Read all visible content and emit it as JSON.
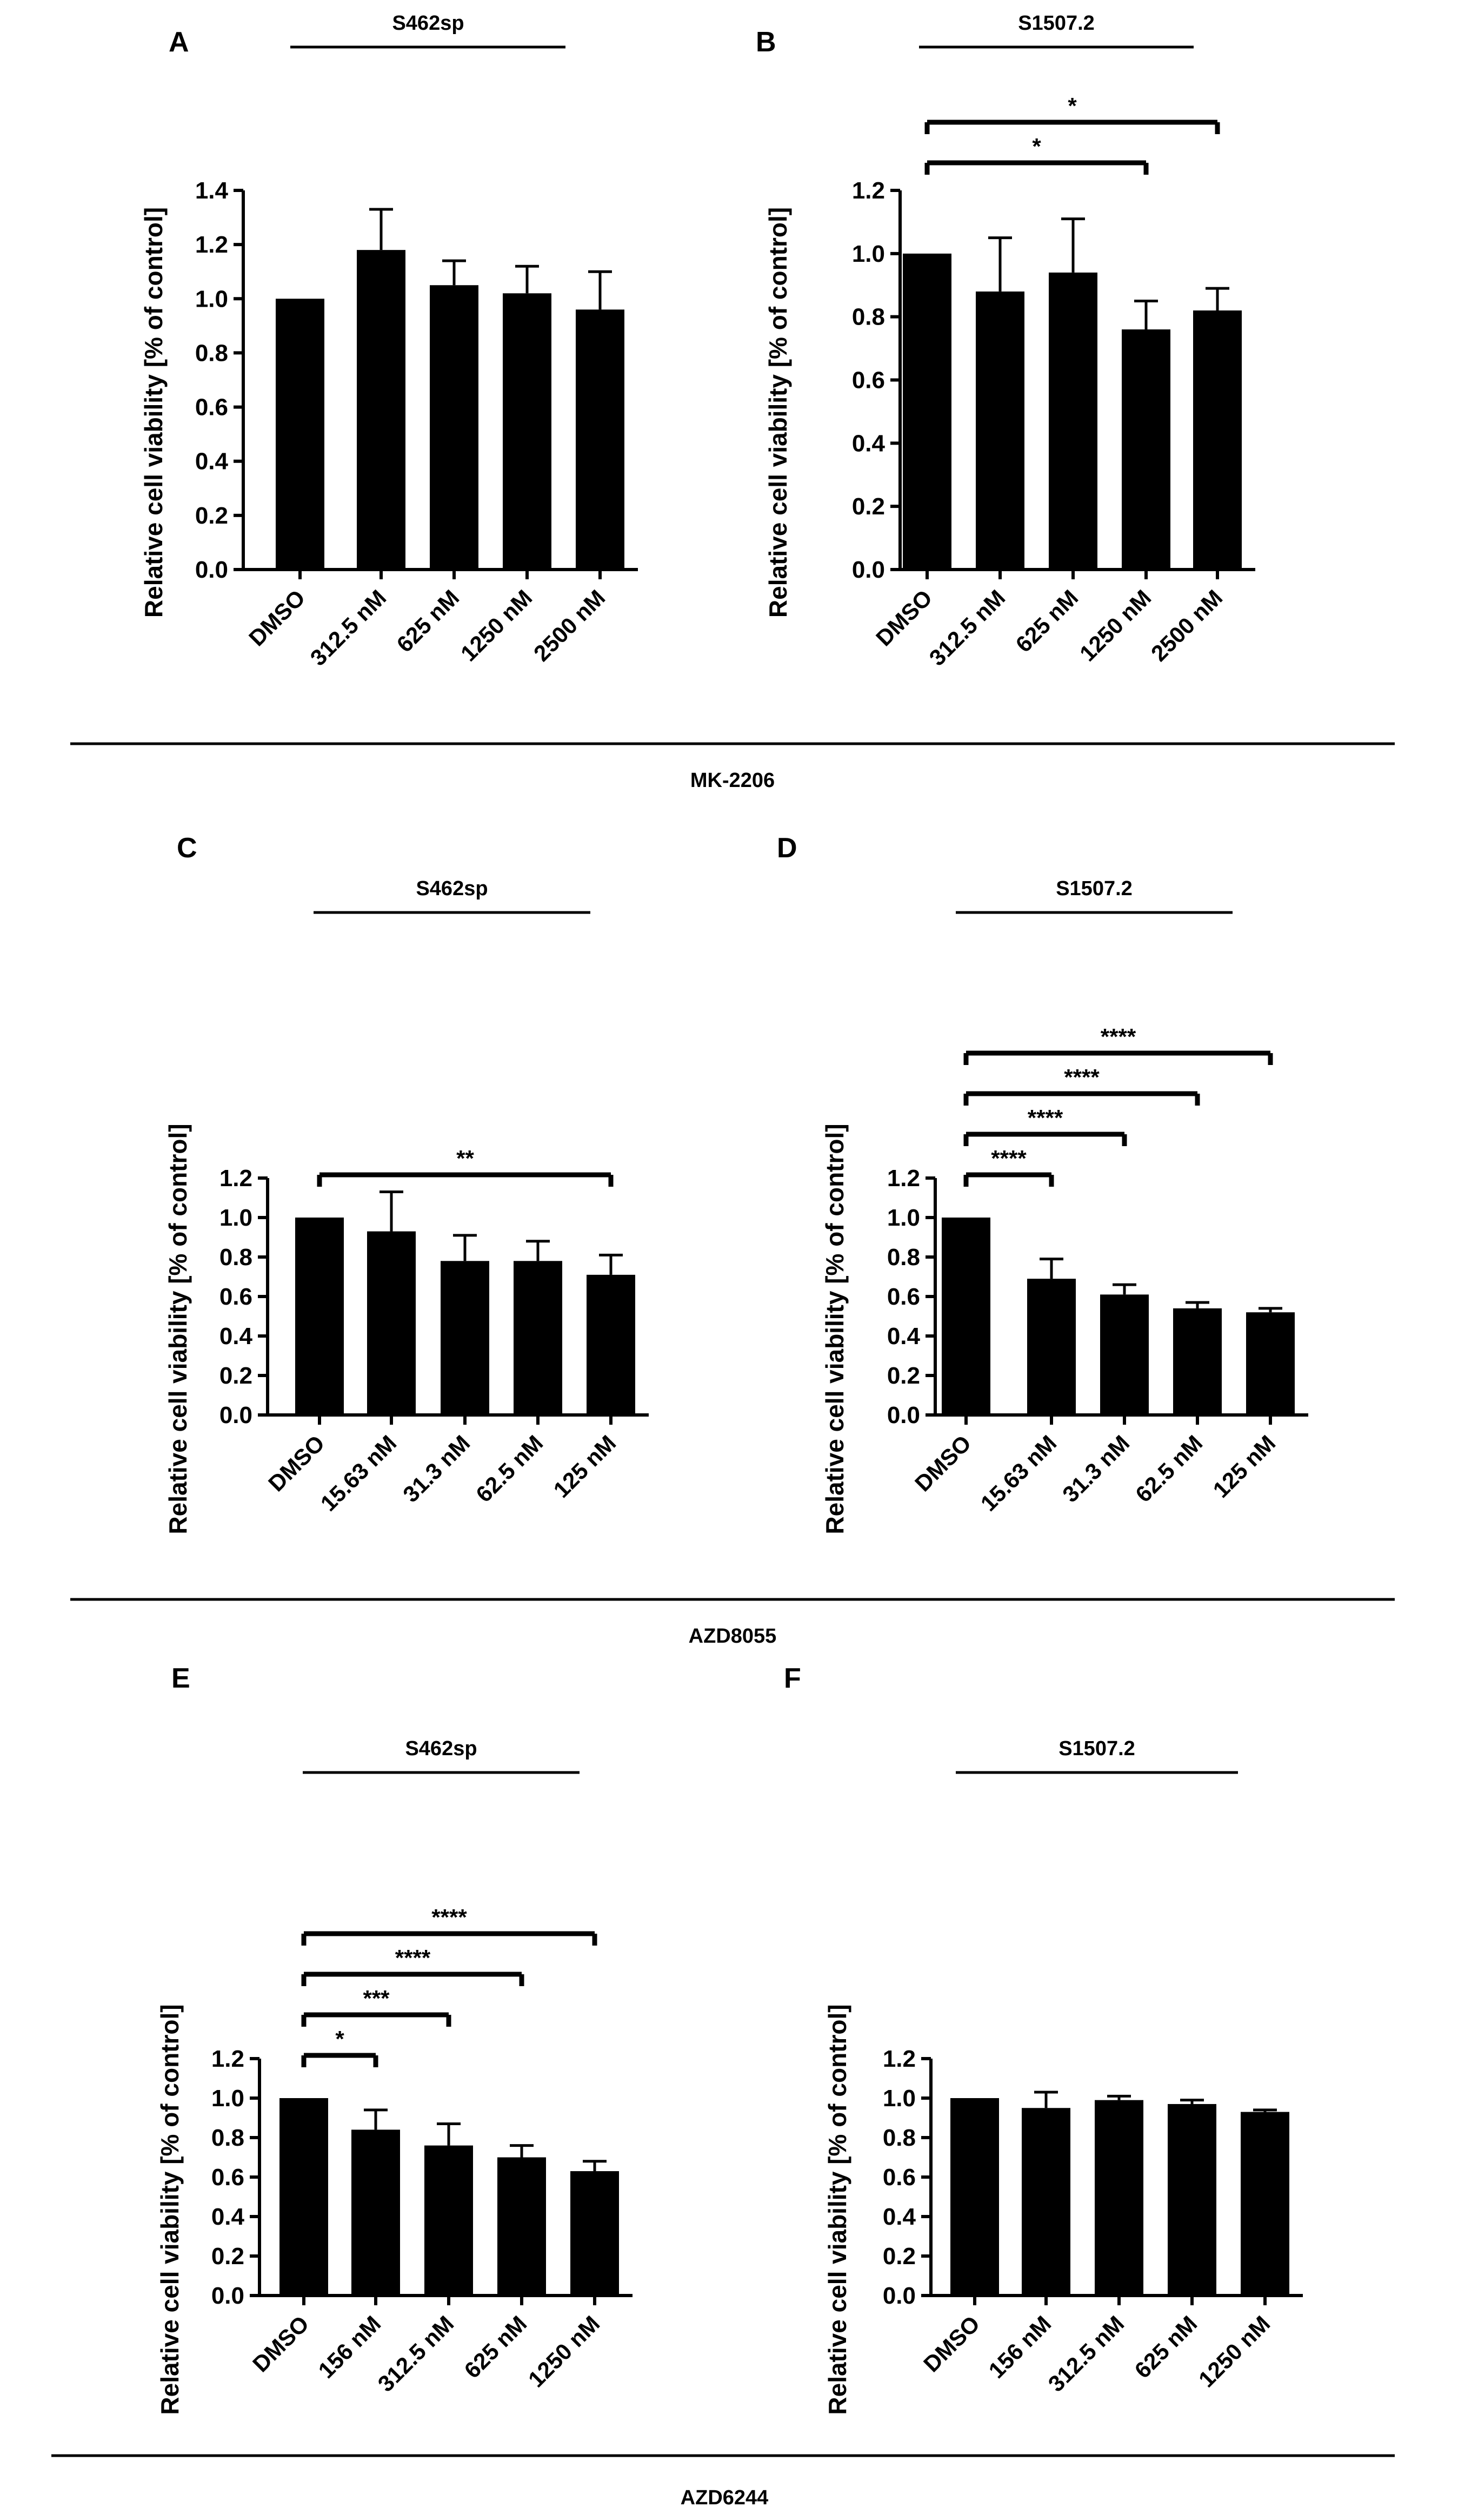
{
  "sections": [
    {
      "label": "MK-2206"
    },
    {
      "label": "AZD8055"
    },
    {
      "label": "AZD6244"
    }
  ],
  "chart_data": [
    {
      "panel": "A",
      "type": "bar",
      "title": "S462sp",
      "ylabel": "Relative cell viability [% of control]",
      "xlabel": "",
      "ylim": [
        0,
        1.4
      ],
      "yticks": [
        "0.0",
        "0.2",
        "0.4",
        "0.6",
        "0.8",
        "1.0",
        "1.2",
        "1.4"
      ],
      "categories": [
        "DMSO",
        "312.5 nM",
        "625 nM",
        "1250 nM",
        "2500 nM"
      ],
      "values": [
        1.0,
        1.18,
        1.05,
        1.02,
        0.96
      ],
      "errors": [
        0,
        0.15,
        0.09,
        0.1,
        0.14
      ],
      "significance": []
    },
    {
      "panel": "B",
      "type": "bar",
      "title": "S1507.2",
      "ylabel": "Relative cell viability [% of control]",
      "xlabel": "",
      "ylim": [
        0,
        1.2
      ],
      "yticks": [
        "0.0",
        "0.2",
        "0.4",
        "0.6",
        "0.8",
        "1.0",
        "1.2"
      ],
      "categories": [
        "DMSO",
        "312.5 nM",
        "625 nM",
        "1250 nM",
        "2500 nM"
      ],
      "values": [
        1.0,
        0.88,
        0.94,
        0.76,
        0.82
      ],
      "errors": [
        0,
        0.17,
        0.17,
        0.09,
        0.07
      ],
      "significance": [
        {
          "from": 0,
          "to": 3,
          "label": "*"
        },
        {
          "from": 0,
          "to": 4,
          "label": "*"
        }
      ]
    },
    {
      "panel": "C",
      "type": "bar",
      "title": "S462sp",
      "ylabel": "Relative cell viability [% of control]",
      "xlabel": "",
      "ylim": [
        0,
        1.2
      ],
      "yticks": [
        "0.0",
        "0.2",
        "0.4",
        "0.6",
        "0.8",
        "1.0",
        "1.2"
      ],
      "categories": [
        "DMSO",
        "15.63 nM",
        "31.3 nM",
        "62.5 nM",
        "125 nM"
      ],
      "values": [
        1.0,
        0.93,
        0.78,
        0.78,
        0.71
      ],
      "errors": [
        0,
        0.2,
        0.13,
        0.1,
        0.1
      ],
      "significance": [
        {
          "from": 0,
          "to": 4,
          "label": "**"
        }
      ]
    },
    {
      "panel": "D",
      "type": "bar",
      "title": "S1507.2",
      "ylabel": "Relative cell viability [% of control]",
      "xlabel": "",
      "ylim": [
        0,
        1.2
      ],
      "yticks": [
        "0.0",
        "0.2",
        "0.4",
        "0.6",
        "0.8",
        "1.0",
        "1.2"
      ],
      "categories": [
        "DMSO",
        "15.63 nM",
        "31.3 nM",
        "62.5 nM",
        "125 nM"
      ],
      "values": [
        1.0,
        0.69,
        0.61,
        0.54,
        0.52
      ],
      "errors": [
        0,
        0.1,
        0.05,
        0.03,
        0.02
      ],
      "significance": [
        {
          "from": 0,
          "to": 1,
          "label": "****"
        },
        {
          "from": 0,
          "to": 2,
          "label": "****"
        },
        {
          "from": 0,
          "to": 3,
          "label": "****"
        },
        {
          "from": 0,
          "to": 4,
          "label": "****"
        }
      ]
    },
    {
      "panel": "E",
      "type": "bar",
      "title": "S462sp",
      "ylabel": "Relative cell viability [% of control]",
      "xlabel": "",
      "ylim": [
        0,
        1.2
      ],
      "yticks": [
        "0.0",
        "0.2",
        "0.4",
        "0.6",
        "0.8",
        "1.0",
        "1.2"
      ],
      "categories": [
        "DMSO",
        "156 nM",
        "312.5 nM",
        "625 nM",
        "1250 nM"
      ],
      "values": [
        1.0,
        0.84,
        0.76,
        0.7,
        0.63
      ],
      "errors": [
        0,
        0.1,
        0.11,
        0.06,
        0.05
      ],
      "significance": [
        {
          "from": 0,
          "to": 1,
          "label": "*"
        },
        {
          "from": 0,
          "to": 2,
          "label": "***"
        },
        {
          "from": 0,
          "to": 3,
          "label": "****"
        },
        {
          "from": 0,
          "to": 4,
          "label": "****"
        }
      ]
    },
    {
      "panel": "F",
      "type": "bar",
      "title": "S1507.2",
      "ylabel": "Relative cell viability [% of control]",
      "xlabel": "",
      "ylim": [
        0,
        1.2
      ],
      "yticks": [
        "0.0",
        "0.2",
        "0.4",
        "0.6",
        "0.8",
        "1.0",
        "1.2"
      ],
      "categories": [
        "DMSO",
        "156 nM",
        "312.5 nM",
        "625 nM",
        "1250 nM"
      ],
      "values": [
        1.0,
        0.95,
        0.99,
        0.97,
        0.93
      ],
      "errors": [
        0,
        0.08,
        0.02,
        0.02,
        0.01
      ],
      "significance": []
    }
  ]
}
